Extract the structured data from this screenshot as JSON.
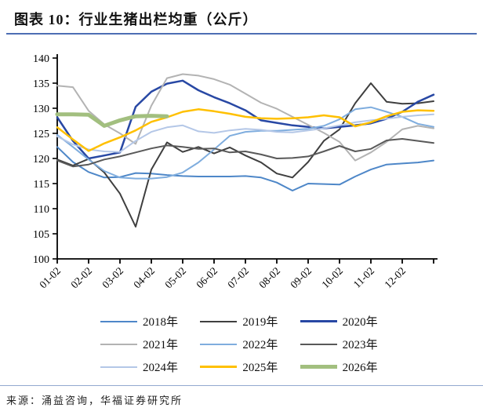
{
  "header": {
    "title": "图表 10：行业生猪出栏均重（公斤）"
  },
  "footer": {
    "source": "来源：涌益咨询，华福证券研究所"
  },
  "chart_data": {
    "type": "line",
    "title": "行业生猪出栏均重（公斤）",
    "x_tick_labels": [
      "01-02",
      "02-02",
      "03-02",
      "04-02",
      "05-02",
      "06-02",
      "07-02",
      "08-02",
      "09-02",
      "10-02",
      "11-02",
      "12-02"
    ],
    "sample_dates": [
      "01-02",
      "01-17",
      "02-02",
      "02-17",
      "03-02",
      "03-17",
      "04-02",
      "04-17",
      "05-02",
      "05-17",
      "06-02",
      "06-17",
      "07-02",
      "07-17",
      "08-02",
      "08-17",
      "09-02",
      "09-17",
      "10-02",
      "10-17",
      "11-02",
      "11-17",
      "12-02",
      "12-17",
      "12-30"
    ],
    "ylim": [
      100,
      140
    ],
    "y_ticks": [
      100,
      105,
      110,
      115,
      120,
      125,
      130,
      135,
      140
    ],
    "grid": false,
    "legend_position": "bottom",
    "series": [
      {
        "name": "2018年",
        "color": "#4e87c8",
        "width": 2,
        "values": [
          122.3,
          119.3,
          117.3,
          116.2,
          116.3,
          117.1,
          117.0,
          116.7,
          116.5,
          116.4,
          116.4,
          116.4,
          116.5,
          116.2,
          115.2,
          113.6,
          115.0,
          114.9,
          114.8,
          116.4,
          117.8,
          118.8,
          119.0,
          119.2,
          119.6
        ]
      },
      {
        "name": "2019年",
        "color": "#3f3f3f",
        "width": 2,
        "values": [
          119.8,
          118.6,
          119.9,
          117.2,
          113.0,
          106.4,
          117.8,
          123.2,
          121.3,
          122.3,
          121.0,
          122.2,
          120.6,
          119.2,
          117.0,
          116.2,
          119.3,
          123.5,
          125.8,
          131.0,
          135.0,
          131.3,
          130.9,
          131.0,
          131.4
        ]
      },
      {
        "name": "2020年",
        "color": "#2848a4",
        "width": 2.5,
        "values": [
          128.2,
          123.5,
          120.0,
          120.6,
          121.2,
          130.3,
          133.3,
          134.9,
          135.5,
          133.6,
          132.2,
          131.0,
          129.6,
          127.6,
          127.1,
          126.6,
          126.3,
          126.0,
          126.3,
          126.6,
          127.0,
          127.9,
          129.3,
          131.3,
          132.7
        ]
      },
      {
        "name": "2021年",
        "color": "#b3b3b3",
        "width": 2,
        "values": [
          134.5,
          134.2,
          129.5,
          126.8,
          125.0,
          122.9,
          130.5,
          136.0,
          136.8,
          136.5,
          135.8,
          134.7,
          132.9,
          131.1,
          129.9,
          128.3,
          126.7,
          125.1,
          123.3,
          119.6,
          121.2,
          123.3,
          125.8,
          126.5,
          126.0
        ]
      },
      {
        "name": "2022年",
        "color": "#7fadde",
        "width": 2,
        "values": [
          124.7,
          122.3,
          119.8,
          117.5,
          116.2,
          116.0,
          116.0,
          116.3,
          117.2,
          119.2,
          121.8,
          124.5,
          125.3,
          125.5,
          125.5,
          125.7,
          125.9,
          126.5,
          127.8,
          129.8,
          130.2,
          129.3,
          128.3,
          126.9,
          126.3
        ]
      },
      {
        "name": "2023年",
        "color": "#595959",
        "width": 2,
        "values": [
          119.6,
          118.4,
          118.8,
          119.8,
          120.4,
          121.2,
          122.0,
          122.6,
          122.3,
          121.9,
          122.0,
          121.2,
          121.4,
          120.8,
          120.0,
          120.1,
          120.4,
          121.4,
          122.5,
          121.4,
          121.9,
          123.6,
          123.9,
          123.5,
          123.1
        ]
      },
      {
        "name": "2024年",
        "color": "#b4c7e7",
        "width": 2,
        "values": [
          124.4,
          122.8,
          121.8,
          121.4,
          121.3,
          123.5,
          125.3,
          126.2,
          126.6,
          125.4,
          125.1,
          125.6,
          125.9,
          125.7,
          125.3,
          125.2,
          125.6,
          126.0,
          126.6,
          127.2,
          127.6,
          127.9,
          128.3,
          128.6,
          128.8
        ]
      },
      {
        "name": "2025年",
        "color": "#ffc000",
        "width": 2.5,
        "values": [
          126.2,
          123.8,
          121.5,
          123.0,
          124.2,
          125.6,
          127.3,
          128.2,
          129.3,
          129.8,
          129.4,
          128.9,
          128.3,
          128.0,
          127.9,
          128.0,
          128.2,
          128.6,
          128.2,
          126.4,
          127.2,
          128.4,
          129.3,
          129.6,
          129.5
        ]
      },
      {
        "name": "2026年",
        "color": "#a2bf7f",
        "width": 5,
        "values": [
          128.8,
          128.8,
          128.7,
          126.5,
          127.6,
          128.4,
          128.5,
          128.4
        ]
      }
    ]
  }
}
